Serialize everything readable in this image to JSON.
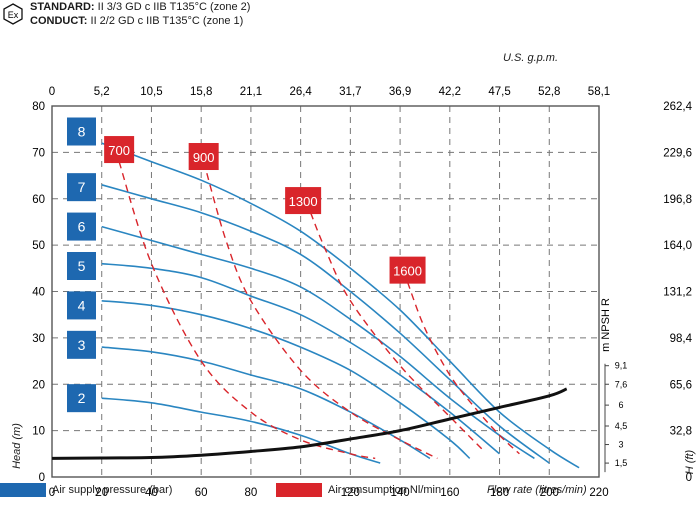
{
  "header": {
    "standard_label": "STANDARD:",
    "standard_text": " II 3/3 GD c IIB T135°C (zone 2)",
    "conduct_label": "CONDUCT:",
    "conduct_text": " II 2/2 GD c IIB T135°C (zone 1)",
    "ex_symbol": "Ex"
  },
  "legend": {
    "air_supply": "Air supply pressure (bar)",
    "air_consumption": "Air consumption Nl/min"
  },
  "colors": {
    "blue_curve": "#2a86c1",
    "blue_box": "#1e68b0",
    "red": "#d9252b",
    "grid": "#777777",
    "npsh": "#111111"
  },
  "chart_data": {
    "type": "line",
    "title": "",
    "xlabel": "Flow rate (litres/min)",
    "ylabel": "Head (m)",
    "y2label": "H (ft)",
    "x2label": "U.S. g.p.m.",
    "npsh_label": "m NPSH R",
    "xlim": [
      0,
      220
    ],
    "ylim": [
      0,
      80
    ],
    "x_ticks": [
      "0",
      "20",
      "40",
      "60",
      "80",
      "100",
      "120",
      "140",
      "160",
      "180",
      "200",
      "220"
    ],
    "y_ticks": [
      "0",
      "10",
      "20",
      "30",
      "40",
      "50",
      "60",
      "70",
      "80"
    ],
    "top_ticks": [
      "0",
      "5,2",
      "10,5",
      "15,8",
      "21,1",
      "26,4",
      "31,7",
      "36,9",
      "42,2",
      "47,5",
      "52,8",
      "58,1"
    ],
    "right_ticks": [
      "0",
      "32,8",
      "65,6",
      "98,4",
      "131,2",
      "164,0",
      "196,8",
      "229,6",
      "262,4"
    ],
    "npsh_ticks": [
      {
        "label": "1,5",
        "y": 3
      },
      {
        "label": "3",
        "y": 7
      },
      {
        "label": "4,5",
        "y": 11
      },
      {
        "label": "6",
        "y": 15.5
      },
      {
        "label": "7,6",
        "y": 20
      },
      {
        "label": "9,1",
        "y": 24
      }
    ],
    "series": [
      {
        "name": "8",
        "label_y": 74.5,
        "points": [
          [
            20,
            72
          ],
          [
            40,
            68
          ],
          [
            60,
            64
          ],
          [
            80,
            59
          ],
          [
            100,
            53
          ],
          [
            120,
            45
          ],
          [
            140,
            36
          ],
          [
            160,
            25
          ],
          [
            180,
            14
          ],
          [
            200,
            6
          ],
          [
            212,
            2
          ]
        ]
      },
      {
        "name": "7",
        "label_y": 62.5,
        "points": [
          [
            20,
            63
          ],
          [
            40,
            60
          ],
          [
            60,
            57
          ],
          [
            80,
            53
          ],
          [
            100,
            48
          ],
          [
            120,
            40
          ],
          [
            140,
            31
          ],
          [
            160,
            21
          ],
          [
            180,
            11
          ],
          [
            200,
            3
          ]
        ]
      },
      {
        "name": "6",
        "label_y": 54,
        "points": [
          [
            20,
            54
          ],
          [
            40,
            51
          ],
          [
            60,
            48
          ],
          [
            80,
            45
          ],
          [
            100,
            41
          ],
          [
            120,
            34
          ],
          [
            140,
            26
          ],
          [
            160,
            17
          ],
          [
            180,
            9
          ],
          [
            194,
            4
          ]
        ]
      },
      {
        "name": "5",
        "label_y": 45.5,
        "points": [
          [
            20,
            46
          ],
          [
            40,
            45
          ],
          [
            60,
            43
          ],
          [
            80,
            39
          ],
          [
            100,
            35
          ],
          [
            120,
            29
          ],
          [
            140,
            22
          ],
          [
            160,
            14
          ],
          [
            180,
            5
          ]
        ]
      },
      {
        "name": "4",
        "label_y": 37,
        "points": [
          [
            20,
            38
          ],
          [
            40,
            37
          ],
          [
            60,
            35
          ],
          [
            80,
            32
          ],
          [
            100,
            28
          ],
          [
            120,
            23
          ],
          [
            140,
            16
          ],
          [
            160,
            8
          ],
          [
            168,
            4
          ]
        ]
      },
      {
        "name": "3",
        "label_y": 28.5,
        "points": [
          [
            20,
            28
          ],
          [
            40,
            27
          ],
          [
            60,
            25
          ],
          [
            80,
            22
          ],
          [
            100,
            19
          ],
          [
            120,
            14
          ],
          [
            140,
            8
          ],
          [
            152,
            4
          ]
        ]
      },
      {
        "name": "2",
        "label_y": 17,
        "points": [
          [
            20,
            17
          ],
          [
            40,
            16
          ],
          [
            60,
            14
          ],
          [
            80,
            12
          ],
          [
            100,
            9
          ],
          [
            120,
            5
          ],
          [
            132,
            3
          ]
        ]
      }
    ],
    "air_consumption": [
      {
        "name": "700",
        "label_x": 27,
        "label_y": 70.5,
        "points": [
          [
            27,
            68
          ],
          [
            40,
            46
          ],
          [
            60,
            25
          ],
          [
            80,
            14
          ],
          [
            100,
            8
          ],
          [
            120,
            5
          ],
          [
            130,
            4
          ]
        ]
      },
      {
        "name": "900",
        "label_x": 61,
        "label_y": 69,
        "points": [
          [
            61,
            68
          ],
          [
            70,
            51
          ],
          [
            80,
            38
          ],
          [
            100,
            23
          ],
          [
            120,
            14
          ],
          [
            140,
            8
          ],
          [
            155,
            4
          ]
        ]
      },
      {
        "name": "1300",
        "label_x": 101,
        "label_y": 59.5,
        "points": [
          [
            104,
            57
          ],
          [
            110,
            49
          ],
          [
            120,
            38
          ],
          [
            140,
            24
          ],
          [
            160,
            13
          ],
          [
            173,
            6
          ]
        ]
      },
      {
        "name": "1600",
        "label_x": 143,
        "label_y": 44.5,
        "points": [
          [
            143,
            42
          ],
          [
            150,
            32
          ],
          [
            160,
            22
          ],
          [
            170,
            15
          ],
          [
            180,
            9
          ],
          [
            188,
            5
          ]
        ]
      }
    ],
    "npsh": {
      "name": "NPSH R",
      "points": [
        [
          0,
          4
        ],
        [
          20,
          4.1
        ],
        [
          40,
          4.2
        ],
        [
          60,
          4.7
        ],
        [
          80,
          5.5
        ],
        [
          100,
          6.5
        ],
        [
          120,
          8.2
        ],
        [
          140,
          10
        ],
        [
          160,
          12.5
        ],
        [
          180,
          15
        ],
        [
          200,
          17.5
        ],
        [
          207,
          19
        ]
      ]
    }
  }
}
